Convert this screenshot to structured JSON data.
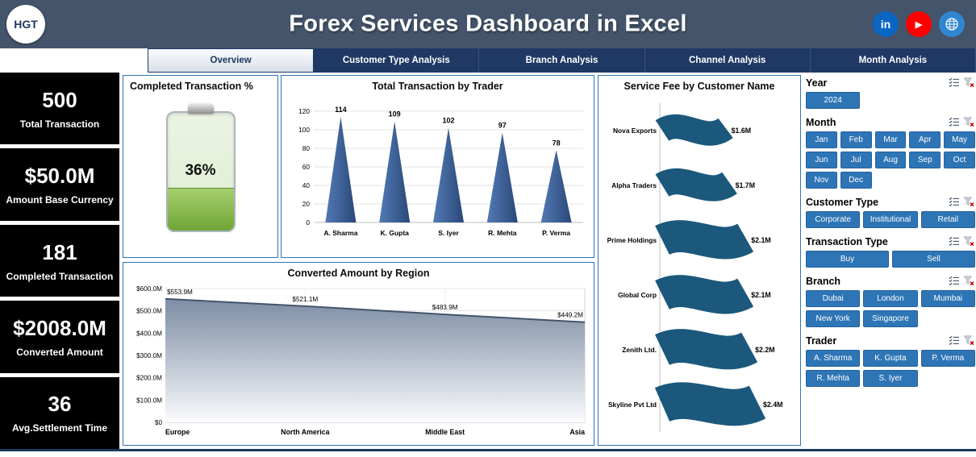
{
  "header": {
    "title": "Forex Services Dashboard in Excel",
    "logo_text": "HGT",
    "social_icons": [
      "linkedin-icon",
      "youtube-icon",
      "globe-icon"
    ]
  },
  "tabs": [
    {
      "label": "Overview",
      "active": true
    },
    {
      "label": "Customer Type Analysis",
      "active": false
    },
    {
      "label": "Branch Analysis",
      "active": false
    },
    {
      "label": "Channel Analysis",
      "active": false
    },
    {
      "label": "Month Analysis",
      "active": false
    }
  ],
  "kpis": [
    {
      "value": "500",
      "label": "Total Transaction"
    },
    {
      "value": "$50.0M",
      "label": "Amount Base Currency"
    },
    {
      "value": "181",
      "label": "Completed Transaction"
    },
    {
      "value": "$2008.0M",
      "label": "Converted Amount"
    },
    {
      "value": "36",
      "label": "Avg.Settlement Time"
    }
  ],
  "chart_data": [
    {
      "type": "gauge",
      "title": "Completed Transaction %",
      "value": 36,
      "max": 100,
      "value_label": "36%"
    },
    {
      "type": "bar",
      "subtype": "cone",
      "title": "Total Transaction by Trader",
      "categories": [
        "A. Sharma",
        "K. Gupta",
        "S. Iyer",
        "R. Mehta",
        "P. Verma"
      ],
      "values": [
        114,
        109,
        102,
        97,
        78
      ],
      "ylim": [
        0,
        120
      ],
      "ytick_step": 20,
      "grid": true,
      "legend": "none"
    },
    {
      "type": "bar",
      "subtype": "ribbon",
      "orientation": "horizontal",
      "title": "Service Fee by Customer Name",
      "categories": [
        "Nova Exports",
        "Alpha Traders",
        "Prime Holdings",
        "Global Corp",
        "Zenith Ltd.",
        "Skyline Pvt Ltd"
      ],
      "values": [
        1.6,
        1.7,
        2.1,
        2.1,
        2.2,
        2.4
      ],
      "labels": [
        "$1.6M",
        "$1.7M",
        "$2.1M",
        "$2.1M",
        "$2.2M",
        "$2.4M"
      ],
      "legend": "none"
    },
    {
      "type": "area",
      "title": "Converted Amount by Region",
      "categories": [
        "Europe",
        "North America",
        "Middle East",
        "Asia"
      ],
      "values": [
        553.9,
        521.1,
        483.9,
        449.2
      ],
      "labels": [
        "$553.9M",
        "$521.1M",
        "$483.9M",
        "$449.2M"
      ],
      "ylim": [
        0,
        600
      ],
      "yticks": [
        "$0",
        "$100.0M",
        "$200.0M",
        "$300.0M",
        "$400.0M",
        "$500.0M",
        "$600.0M"
      ],
      "grid": true,
      "legend": "none"
    }
  ],
  "slicers": [
    {
      "title": "Year",
      "items": [
        "2024"
      ]
    },
    {
      "title": "Month",
      "items": [
        "Jan",
        "Feb",
        "Mar",
        "Apr",
        "May",
        "Jun",
        "Jul",
        "Aug",
        "Sep",
        "Oct",
        "Nov",
        "Dec"
      ]
    },
    {
      "title": "Customer Type",
      "items": [
        "Corporate",
        "Institutional",
        "Retail"
      ]
    },
    {
      "title": "Transaction Type",
      "items": [
        "Buy",
        "Sell"
      ]
    },
    {
      "title": "Branch",
      "items": [
        "Dubai",
        "London",
        "Mumbai",
        "New York",
        "Singapore"
      ]
    },
    {
      "title": "Trader",
      "items": [
        "A. Sharma",
        "K. Gupta",
        "P. Verma",
        "R. Mehta",
        "S. Iyer"
      ]
    }
  ],
  "slicer_icons": [
    "multiselect-icon",
    "clear-filter-icon"
  ],
  "colors": {
    "header_bg": "#44546A",
    "tab_bg": "#1F3864",
    "panel_border": "#2E75B6",
    "slicer_button": "#2E75B6",
    "cone_dark": "#2A4878",
    "cone_light": "#527AB5",
    "ribbon": "#1B587C",
    "area_line": "#44546A",
    "area_fill_top": "#76879F",
    "battery_green": "#6FA536",
    "kpi_bg": "#000000"
  }
}
